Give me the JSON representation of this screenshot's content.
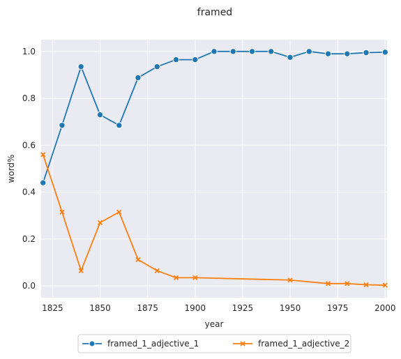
{
  "chart_data": {
    "type": "line",
    "title": "framed",
    "xlabel": "year",
    "ylabel": "word%",
    "xlim": [
      1819,
      2001
    ],
    "ylim": [
      -0.05,
      1.05
    ],
    "xticks": [
      1825,
      1850,
      1875,
      1900,
      1925,
      1950,
      1975,
      2000
    ],
    "yticks": [
      0.0,
      0.2,
      0.4,
      0.6,
      0.8,
      1.0
    ],
    "xtick_labels": [
      "1825",
      "1850",
      "1875",
      "1900",
      "1925",
      "1950",
      "1975",
      "2000"
    ],
    "ytick_labels": [
      "0.0",
      "0.2",
      "0.4",
      "0.6",
      "0.8",
      "1.0"
    ],
    "grid": true,
    "legend_position": "bottom-center",
    "series": [
      {
        "name": "framed_1_adjective_1",
        "color": "#1f77b4",
        "marker": "circle",
        "x": [
          1820,
          1830,
          1840,
          1850,
          1860,
          1870,
          1880,
          1890,
          1900,
          1910,
          1920,
          1930,
          1940,
          1950,
          1960,
          1970,
          1980,
          1990,
          2000
        ],
        "y": [
          0.44,
          0.685,
          0.935,
          0.73,
          0.685,
          0.888,
          0.935,
          0.965,
          0.965,
          1.0,
          1.0,
          1.0,
          1.0,
          0.975,
          1.0,
          0.99,
          0.99,
          0.995,
          0.997
        ]
      },
      {
        "name": "framed_1_adjective_2",
        "color": "#ff7f0e",
        "marker": "x",
        "x": [
          1820,
          1830,
          1840,
          1850,
          1860,
          1870,
          1880,
          1890,
          1900,
          1950,
          1970,
          1980,
          1990,
          2000
        ],
        "y": [
          0.56,
          0.315,
          0.065,
          0.27,
          0.315,
          0.112,
          0.065,
          0.035,
          0.035,
          0.025,
          0.01,
          0.01,
          0.005,
          0.003
        ]
      }
    ]
  }
}
